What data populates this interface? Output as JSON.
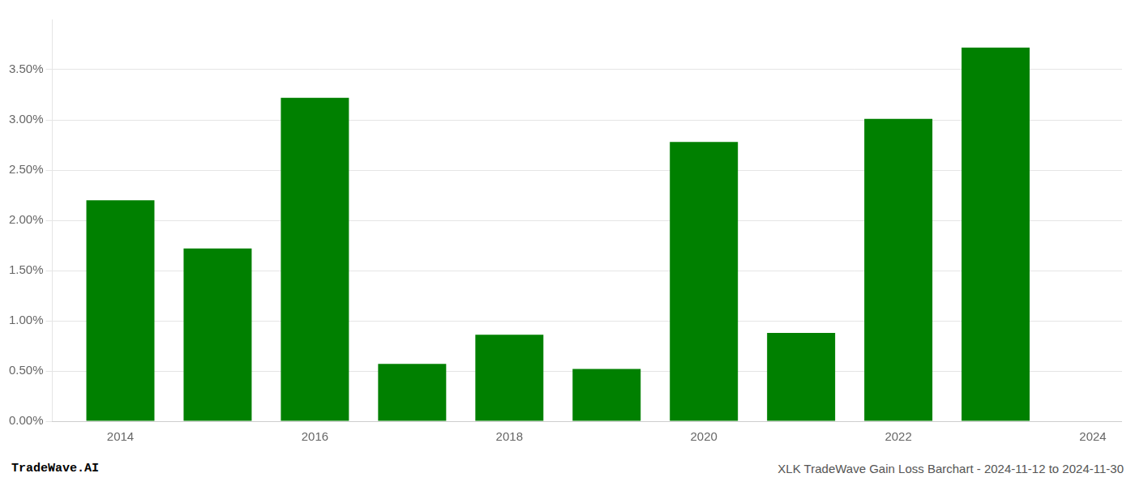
{
  "chart_data": {
    "type": "bar",
    "x": [
      2014,
      2015,
      2016,
      2017,
      2018,
      2019,
      2020,
      2021,
      2022,
      2023
    ],
    "values": [
      0.022,
      0.0172,
      0.0322,
      0.0057,
      0.0086,
      0.0052,
      0.0278,
      0.0088,
      0.0301,
      0.0372
    ],
    "color": "#008000",
    "xlim": [
      2013.3,
      2024.3
    ],
    "xticks": [
      2014,
      2016,
      2018,
      2020,
      2022,
      2024
    ],
    "ylim": [
      0,
      0.04
    ],
    "yticks": [
      {
        "value": 0.0,
        "label": "0.00%"
      },
      {
        "value": 0.005,
        "label": "0.50%"
      },
      {
        "value": 0.01,
        "label": "1.00%"
      },
      {
        "value": 0.015,
        "label": "1.50%"
      },
      {
        "value": 0.02,
        "label": "2.00%"
      },
      {
        "value": 0.025,
        "label": "2.50%"
      },
      {
        "value": 0.03,
        "label": "3.00%"
      },
      {
        "value": 0.035,
        "label": "3.50%"
      }
    ],
    "grid": "y",
    "annotations": [
      "TradeWave.AI",
      "XLK TradeWave Gain Loss Barchart - 2024-11-12 to 2024-11-30"
    ]
  }
}
